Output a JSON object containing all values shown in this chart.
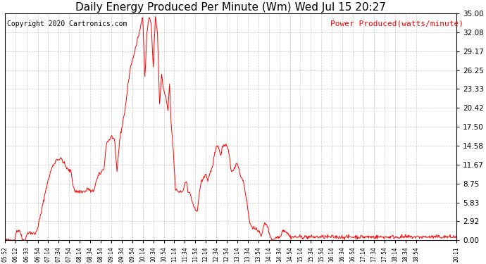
{
  "title": "Daily Energy Produced Per Minute (Wm) Wed Jul 15 20:27",
  "copyright": "Copyright 2020 Cartronics.com",
  "legend_label": "Power Produced(watts/minute)",
  "ylabel_ticks": [
    0.0,
    2.92,
    5.83,
    8.75,
    11.67,
    14.58,
    17.5,
    20.42,
    23.33,
    26.25,
    29.17,
    32.08,
    35.0
  ],
  "ymax": 35.0,
  "ymin": 0.0,
  "line_color": "red",
  "background_color": "#ffffff",
  "grid_color": "#bbbbbb",
  "title_fontsize": 11,
  "copyright_fontsize": 7,
  "legend_fontsize": 8,
  "xtick_fontsize": 5.5,
  "ytick_fontsize": 7.5,
  "xtick_labels": [
    "05:52",
    "06:12",
    "06:33",
    "06:54",
    "07:14",
    "07:34",
    "07:54",
    "08:14",
    "08:34",
    "08:54",
    "09:14",
    "09:34",
    "09:54",
    "10:14",
    "10:34",
    "10:54",
    "11:14",
    "11:34",
    "11:54",
    "12:14",
    "12:34",
    "12:54",
    "13:14",
    "13:34",
    "13:54",
    "14:14",
    "14:34",
    "14:54",
    "15:14",
    "15:34",
    "15:54",
    "16:14",
    "16:34",
    "16:54",
    "17:14",
    "17:34",
    "17:54",
    "18:14",
    "18:34",
    "18:54",
    "20:11"
  ],
  "curve_keypoints": [
    [
      352,
      0.0
    ],
    [
      370,
      0.0
    ],
    [
      374,
      1.5
    ],
    [
      380,
      1.5
    ],
    [
      385,
      0.0
    ],
    [
      390,
      0.0
    ],
    [
      395,
      1.2
    ],
    [
      400,
      1.2
    ],
    [
      405,
      1.0
    ],
    [
      410,
      1.0
    ],
    [
      414,
      2.0
    ],
    [
      420,
      4.0
    ],
    [
      430,
      8.0
    ],
    [
      440,
      11.0
    ],
    [
      450,
      12.5
    ],
    [
      460,
      12.5
    ],
    [
      470,
      11.0
    ],
    [
      478,
      10.5
    ],
    [
      480,
      9.0
    ],
    [
      485,
      7.5
    ],
    [
      490,
      7.5
    ],
    [
      495,
      7.5
    ],
    [
      500,
      7.5
    ],
    [
      505,
      7.5
    ],
    [
      510,
      8.0
    ],
    [
      515,
      7.5
    ],
    [
      520,
      7.5
    ],
    [
      525,
      9.0
    ],
    [
      530,
      10.0
    ],
    [
      540,
      11.0
    ],
    [
      545,
      15.0
    ],
    [
      550,
      15.5
    ],
    [
      555,
      16.0
    ],
    [
      560,
      15.5
    ],
    [
      565,
      10.5
    ],
    [
      570,
      15.5
    ],
    [
      580,
      20.0
    ],
    [
      590,
      26.5
    ],
    [
      600,
      29.5
    ],
    [
      610,
      33.0
    ],
    [
      614,
      34.8
    ],
    [
      618,
      25.0
    ],
    [
      622,
      32.0
    ],
    [
      626,
      34.5
    ],
    [
      630,
      33.5
    ],
    [
      634,
      26.5
    ],
    [
      638,
      34.5
    ],
    [
      642,
      32.0
    ],
    [
      646,
      21.0
    ],
    [
      650,
      25.5
    ],
    [
      654,
      23.0
    ],
    [
      658,
      22.0
    ],
    [
      662,
      20.0
    ],
    [
      665,
      24.0
    ],
    [
      668,
      18.0
    ],
    [
      672,
      14.0
    ],
    [
      676,
      8.0
    ],
    [
      680,
      7.5
    ],
    [
      685,
      7.5
    ],
    [
      688,
      7.5
    ],
    [
      690,
      7.5
    ],
    [
      695,
      9.0
    ],
    [
      698,
      9.0
    ],
    [
      700,
      7.5
    ],
    [
      705,
      7.0
    ],
    [
      708,
      6.0
    ],
    [
      712,
      5.0
    ],
    [
      715,
      4.5
    ],
    [
      718,
      4.5
    ],
    [
      722,
      7.5
    ],
    [
      726,
      9.0
    ],
    [
      730,
      9.5
    ],
    [
      734,
      10.5
    ],
    [
      738,
      9.0
    ],
    [
      742,
      10.5
    ],
    [
      746,
      11.0
    ],
    [
      750,
      13.0
    ],
    [
      754,
      14.5
    ],
    [
      758,
      14.5
    ],
    [
      762,
      13.0
    ],
    [
      766,
      14.5
    ],
    [
      770,
      14.5
    ],
    [
      774,
      14.5
    ],
    [
      778,
      13.5
    ],
    [
      782,
      11.0
    ],
    [
      786,
      10.5
    ],
    [
      790,
      11.5
    ],
    [
      794,
      12.0
    ],
    [
      800,
      10.0
    ],
    [
      806,
      9.0
    ],
    [
      812,
      6.0
    ],
    [
      818,
      2.5
    ],
    [
      824,
      2.0
    ],
    [
      830,
      1.5
    ],
    [
      836,
      1.5
    ],
    [
      840,
      0.5
    ],
    [
      845,
      2.5
    ],
    [
      850,
      2.5
    ],
    [
      855,
      1.0
    ],
    [
      858,
      0.5
    ],
    [
      860,
      0.0
    ],
    [
      870,
      0.5
    ],
    [
      875,
      0.5
    ],
    [
      880,
      1.5
    ],
    [
      885,
      1.5
    ],
    [
      890,
      1.0
    ],
    [
      895,
      0.5
    ],
    [
      900,
      0.5
    ],
    [
      905,
      0.5
    ],
    [
      910,
      0.5
    ],
    [
      915,
      0.5
    ],
    [
      920,
      0.5
    ],
    [
      925,
      0.5
    ],
    [
      930,
      0.5
    ],
    [
      935,
      0.5
    ],
    [
      940,
      0.5
    ],
    [
      945,
      0.5
    ],
    [
      950,
      0.5
    ],
    [
      955,
      0.5
    ],
    [
      960,
      0.5
    ],
    [
      965,
      0.5
    ],
    [
      970,
      0.5
    ],
    [
      975,
      0.5
    ],
    [
      980,
      0.5
    ],
    [
      985,
      0.5
    ],
    [
      990,
      0.5
    ],
    [
      995,
      0.5
    ],
    [
      1000,
      0.5
    ],
    [
      1005,
      0.5
    ],
    [
      1010,
      0.5
    ],
    [
      1015,
      0.5
    ],
    [
      1020,
      0.5
    ],
    [
      1025,
      0.5
    ],
    [
      1030,
      0.5
    ],
    [
      1035,
      0.5
    ],
    [
      1040,
      0.5
    ],
    [
      1045,
      0.5
    ],
    [
      1050,
      0.5
    ],
    [
      1055,
      0.5
    ],
    [
      1060,
      0.5
    ],
    [
      1065,
      0.5
    ],
    [
      1070,
      0.5
    ],
    [
      1075,
      0.5
    ],
    [
      1080,
      0.5
    ],
    [
      1085,
      0.5
    ],
    [
      1090,
      0.5
    ],
    [
      1095,
      0.5
    ],
    [
      1100,
      0.5
    ],
    [
      1105,
      0.5
    ],
    [
      1110,
      0.5
    ],
    [
      1115,
      0.5
    ],
    [
      1120,
      0.5
    ],
    [
      1125,
      0.5
    ],
    [
      1130,
      0.5
    ],
    [
      1135,
      0.5
    ],
    [
      1140,
      0.5
    ],
    [
      1145,
      0.5
    ],
    [
      1150,
      0.5
    ],
    [
      1155,
      0.5
    ],
    [
      1160,
      0.5
    ],
    [
      1165,
      0.5
    ],
    [
      1170,
      0.5
    ],
    [
      1175,
      0.5
    ],
    [
      1180,
      0.5
    ],
    [
      1185,
      0.5
    ],
    [
      1190,
      0.5
    ],
    [
      1195,
      0.5
    ],
    [
      1200,
      0.5
    ],
    [
      1205,
      0.5
    ],
    [
      1210,
      0.5
    ],
    [
      1211,
      0.5
    ]
  ]
}
